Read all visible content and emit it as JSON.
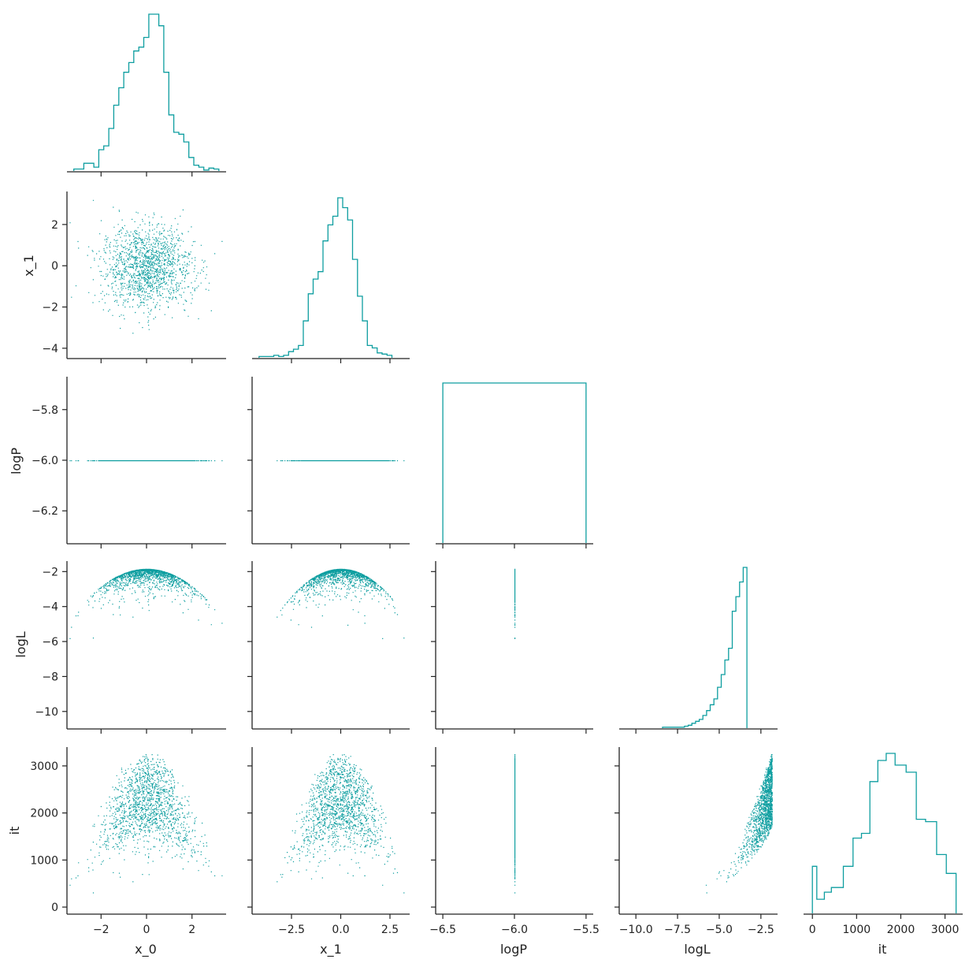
{
  "chart_data": {
    "type": "corner-pairplot",
    "color": "#0e9ea0",
    "axis_color": "#222222",
    "variables": [
      {
        "name": "x_0",
        "xlim": [
          -3.5,
          3.5
        ],
        "ylim": [
          -3.5,
          3.5
        ],
        "xticks": [
          -2,
          0,
          2
        ],
        "yticks": [],
        "xtick_labels": [
          "−2",
          "0",
          "2"
        ],
        "ytick_labels": []
      },
      {
        "name": "x_1",
        "xlim": [
          -4.5,
          3.5
        ],
        "ylim": [
          -4.5,
          3.6
        ],
        "xticks": [
          -2.5,
          0.0,
          2.5
        ],
        "yticks": [
          -4,
          -2,
          0,
          2
        ],
        "xtick_labels": [
          "−2.5",
          "0.0",
          "2.5"
        ],
        "ytick_labels": [
          "−4",
          "−2",
          "0",
          "2"
        ]
      },
      {
        "name": "logP",
        "xlim": [
          -6.55,
          -5.45
        ],
        "ylim": [
          -6.33,
          -5.67
        ],
        "xticks": [
          -6.5,
          -6.0,
          -5.5
        ],
        "yticks": [
          -6.2,
          -6.0,
          -5.8
        ],
        "xtick_labels": [
          "−6.5",
          "−6.0",
          "−5.5"
        ],
        "ytick_labels": [
          "−6.2",
          "−6.0",
          "−5.8"
        ]
      },
      {
        "name": "logL",
        "xlim": [
          -11.0,
          -1.5
        ],
        "ylim": [
          -11.0,
          -1.4
        ],
        "xticks": [
          -10.0,
          -7.5,
          -5.0,
          -2.5
        ],
        "yticks": [
          -10,
          -8,
          -6,
          -4,
          -2
        ],
        "xtick_labels": [
          "−10.0",
          "−7.5",
          "−5.0",
          "−2.5"
        ],
        "ytick_labels": [
          "−10",
          "−8",
          "−6",
          "−4",
          "−2"
        ]
      },
      {
        "name": "it",
        "xlim": [
          -200,
          3400
        ],
        "ylim": [
          -150,
          3400
        ],
        "xticks": [
          0,
          1000,
          2000,
          3000
        ],
        "yticks": [
          0,
          1000,
          2000,
          3000
        ],
        "xtick_labels": [
          "0",
          "1000",
          "2000",
          "3000"
        ],
        "ytick_labels": [
          "0",
          "1000",
          "2000",
          "3000"
        ]
      }
    ],
    "diagonal_histograms": {
      "x_0": {
        "edges_start": -3.2,
        "bin_width": 0.22,
        "counts": [
          2,
          2,
          8,
          8,
          4,
          22,
          26,
          44,
          68,
          86,
          102,
          112,
          124,
          128,
          138,
          162,
          162,
          150,
          102,
          58,
          40,
          38,
          30,
          14,
          6,
          4,
          1,
          3,
          2
        ]
      },
      "x_1": {
        "edges_start": -4.15,
        "bin_width": 0.25,
        "counts": [
          1,
          1,
          1,
          2,
          1,
          2,
          5,
          7,
          10,
          30,
          52,
          64,
          70,
          95,
          108,
          115,
          130,
          122,
          112,
          80,
          50,
          30,
          10,
          8,
          4,
          3,
          2
        ]
      },
      "logP": {
        "edges": [
          -6.5,
          -5.5
        ],
        "counts": [
          1
        ]
      },
      "logL": {
        "edges_start": -8.4,
        "bin_width": 0.22,
        "counts": [
          1,
          1,
          1,
          1,
          1,
          1,
          2,
          3,
          5,
          7,
          9,
          13,
          18,
          24,
          30,
          42,
          55,
          70,
          82,
          120,
          135,
          150,
          165
        ]
      },
      "it": {
        "edges": [
          0,
          100,
          270,
          430,
          700,
          920,
          1110,
          1300,
          1480,
          1670,
          1870,
          2120,
          2350,
          2560,
          2810,
          3030,
          3250
        ],
        "counts": [
          40,
          12,
          18,
          22,
          40,
          64,
          68,
          112,
          130,
          136,
          126,
          120,
          80,
          78,
          50,
          34
        ]
      }
    },
    "scatter_points": 1500,
    "model": {
      "x_0": {
        "dist": "normal",
        "mean": 0.0,
        "sd": 1.0
      },
      "x_1": {
        "dist": "normal",
        "mean": 0.0,
        "sd": 1.0
      },
      "logP": {
        "constant": -6.0
      },
      "logL": {
        "formula": "-1.84 - 0.5 * (x_0^2 + x_1^2) * 0.5"
      },
      "it": {
        "range": [
          0,
          3250
        ],
        "relation": "increases with logL"
      }
    }
  }
}
